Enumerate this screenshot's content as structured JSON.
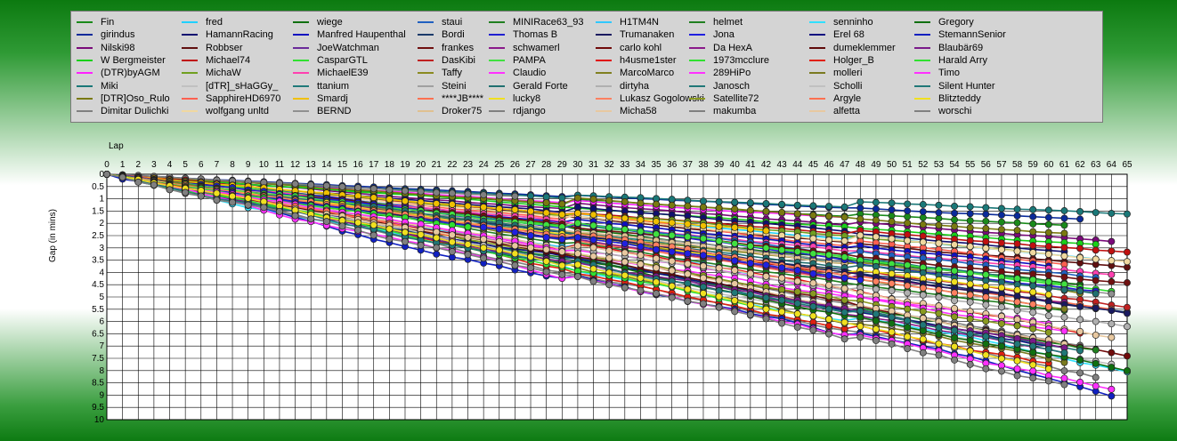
{
  "chart_data": {
    "type": "line",
    "xlabel": "Lap",
    "ylabel": "Gap (in mins)",
    "xlim": [
      0,
      65
    ],
    "ylim": [
      0,
      10
    ],
    "y_ticks": [
      "0",
      "0.5",
      "1",
      "1.5",
      "2",
      "2.5",
      "3",
      "3.5",
      "4",
      "4.5",
      "5",
      "5.5",
      "6",
      "6.5",
      "7",
      "7.5",
      "8",
      "8.5",
      "9",
      "9.5",
      "10"
    ],
    "grid": true,
    "legend_position": "top",
    "series": [
      {
        "name": "Fin",
        "color": "#1a8a1a"
      },
      {
        "name": "girindus",
        "color": "#0a2a9a"
      },
      {
        "name": "Nilski98",
        "color": "#7a0a7a"
      },
      {
        "name": "W Bergmeister",
        "color": "#18d018"
      },
      {
        "name": "(DTR)byAGM",
        "color": "#ff20ff"
      },
      {
        "name": "Miki",
        "color": "#1a7878"
      },
      {
        "name": "[DTR]Oso_Rulo",
        "color": "#7a7a10"
      },
      {
        "name": "Dimitar Dulichki",
        "color": "#808080"
      },
      {
        "name": "fred",
        "color": "#20d0ff"
      },
      {
        "name": "HamannRacing",
        "color": "#101070"
      },
      {
        "name": "Robbser",
        "color": "#601010"
      },
      {
        "name": "Michael74",
        "color": "#c01010"
      },
      {
        "name": "MichaW",
        "color": "#70a020"
      },
      {
        "name": "[dTR]_sHaGGy_",
        "color": "#c0c0c0"
      },
      {
        "name": "SapphireHD6970",
        "color": "#ff6050"
      },
      {
        "name": "wolfgang unltd",
        "color": "#f0d8a0"
      },
      {
        "name": "wiege",
        "color": "#107010"
      },
      {
        "name": "Manfred Haupenthal",
        "color": "#1010c0"
      },
      {
        "name": "JoeWatchman",
        "color": "#6a2a9a"
      },
      {
        "name": "CasparGTL",
        "color": "#30e030"
      },
      {
        "name": "MichaelE39",
        "color": "#ff40b0"
      },
      {
        "name": "ttanium",
        "color": "#207a7a"
      },
      {
        "name": "Smardj",
        "color": "#f0c000"
      },
      {
        "name": "BERND",
        "color": "#909090"
      },
      {
        "name": "staui",
        "color": "#2060c0"
      },
      {
        "name": "Bordi",
        "color": "#1a3a6a"
      },
      {
        "name": "frankes",
        "color": "#701010"
      },
      {
        "name": "DasKibi",
        "color": "#c02020"
      },
      {
        "name": "Taffy",
        "color": "#8a8a20"
      },
      {
        "name": "Steini",
        "color": "#a0a0a0"
      },
      {
        "name": "****JB****",
        "color": "#ff7050"
      },
      {
        "name": "Droker75",
        "color": "#e0c090"
      },
      {
        "name": "MINIRace63_93",
        "color": "#208020"
      },
      {
        "name": "Thomas B",
        "color": "#2020d0"
      },
      {
        "name": "schwamerl",
        "color": "#8a1a8a"
      },
      {
        "name": "PAMPA",
        "color": "#40e040"
      },
      {
        "name": "Claudio",
        "color": "#ff30ff"
      },
      {
        "name": "Gerald Forte",
        "color": "#207070"
      },
      {
        "name": "lucky8",
        "color": "#f0e020"
      },
      {
        "name": "rdjango",
        "color": "#808080"
      },
      {
        "name": "H1TM4N",
        "color": "#30c8ff"
      },
      {
        "name": "Trumanaken",
        "color": "#1a1a60"
      },
      {
        "name": "carlo kohl",
        "color": "#700a0a"
      },
      {
        "name": "h4usme1ster",
        "color": "#e01010"
      },
      {
        "name": "MarcoMarco",
        "color": "#808020"
      },
      {
        "name": "dirtyha",
        "color": "#b0b0b0"
      },
      {
        "name": "Lukasz Gogolowski",
        "color": "#ff8060"
      },
      {
        "name": "Micha58",
        "color": "#e8c8a0"
      },
      {
        "name": "helmet",
        "color": "#208020"
      },
      {
        "name": "Jona",
        "color": "#2020e0"
      },
      {
        "name": "Da HexA",
        "color": "#8a1a8a"
      },
      {
        "name": "1973mcclure",
        "color": "#30e030"
      },
      {
        "name": "289HiPo",
        "color": "#ff30ff"
      },
      {
        "name": "Janosch",
        "color": "#207878"
      },
      {
        "name": "Satellite72",
        "color": "#8a9a20"
      },
      {
        "name": "makumba",
        "color": "#808080"
      },
      {
        "name": "senninho",
        "color": "#30e0ff"
      },
      {
        "name": "Erel 68",
        "color": "#101080"
      },
      {
        "name": "dumeklemmer",
        "color": "#600a0a"
      },
      {
        "name": "Holger_B",
        "color": "#e02010"
      },
      {
        "name": "molleri",
        "color": "#7a7a20"
      },
      {
        "name": "Scholli",
        "color": "#c0c0c0"
      },
      {
        "name": "Argyle",
        "color": "#ff7050"
      },
      {
        "name": "alfetta",
        "color": "#e8c8a0"
      },
      {
        "name": "Gregory",
        "color": "#107010"
      },
      {
        "name": "StemannSenior",
        "color": "#1020c0"
      },
      {
        "name": "Blaubär69",
        "color": "#7a1a8a"
      },
      {
        "name": "Harald Arry",
        "color": "#30e030"
      },
      {
        "name": "Timo",
        "color": "#ff30ff"
      },
      {
        "name": "Silent Hunter",
        "color": "#207878"
      },
      {
        "name": "Blitzteddy",
        "color": "#f0e020"
      },
      {
        "name": "worschi",
        "color": "#808080"
      }
    ]
  }
}
